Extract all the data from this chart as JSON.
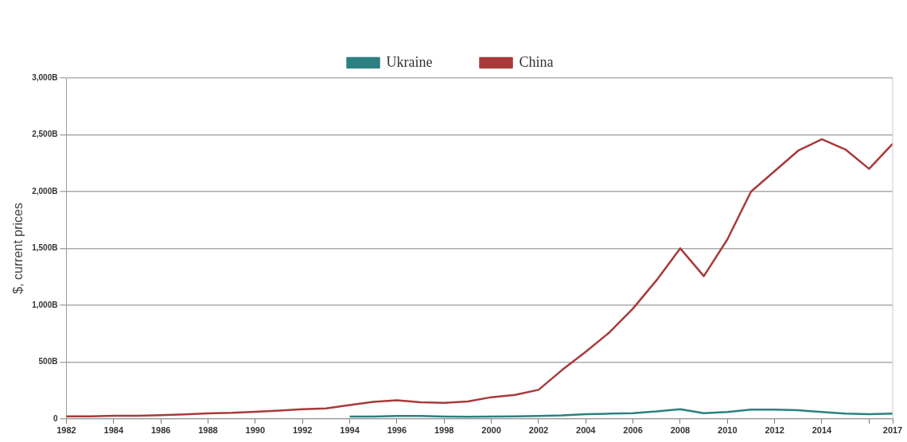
{
  "chart_data": {
    "type": "line",
    "ylabel": "$, current prices",
    "x": [
      1982,
      1983,
      1984,
      1985,
      1986,
      1987,
      1988,
      1989,
      1990,
      1991,
      1992,
      1993,
      1994,
      1995,
      1996,
      1997,
      1998,
      1999,
      2000,
      2001,
      2002,
      2003,
      2004,
      2005,
      2006,
      2007,
      2008,
      2009,
      2010,
      2011,
      2012,
      2013,
      2014,
      2015,
      2016,
      2017
    ],
    "series": [
      {
        "name": "Ukraine",
        "color": "#2b8080",
        "values": [
          null,
          null,
          null,
          null,
          null,
          null,
          null,
          null,
          null,
          null,
          null,
          null,
          20,
          20,
          25,
          25,
          20,
          18,
          20,
          22,
          25,
          30,
          40,
          45,
          50,
          65,
          85,
          50,
          60,
          80,
          80,
          75,
          60,
          45,
          40,
          45
        ]
      },
      {
        "name": "China",
        "color": "#a83a3a",
        "values": [
          22,
          22,
          26,
          27,
          31,
          39,
          47,
          52,
          62,
          72,
          85,
          92,
          121,
          149,
          163,
          145,
          140,
          152,
          190,
          210,
          255,
          430,
          590,
          760,
          970,
          1220,
          1500,
          1255,
          1580,
          2000,
          2180,
          2360,
          2460,
          2370,
          2200,
          2420
        ]
      }
    ],
    "xlim": [
      1982,
      2017
    ],
    "xticks": [
      1982,
      1984,
      1986,
      1988,
      1990,
      1992,
      1994,
      1996,
      1998,
      2000,
      2002,
      2004,
      2006,
      2008,
      2010,
      2012,
      2014,
      {
        "value": 2016,
        "label": null
      },
      2017
    ],
    "ylim": [
      0,
      3000
    ],
    "yticks": [
      {
        "value": 0,
        "label": "0"
      },
      {
        "value": 500,
        "label": "500B"
      },
      {
        "value": 1000,
        "label": "1,000B"
      },
      {
        "value": 1500,
        "label": "1,500B"
      },
      {
        "value": 2000,
        "label": "2,000B"
      },
      {
        "value": 2500,
        "label": "2,500B"
      },
      {
        "value": 3000,
        "label": "3,000B"
      }
    ],
    "grid": "y",
    "legend": "top",
    "marker": "none",
    "line_style": "solid"
  }
}
